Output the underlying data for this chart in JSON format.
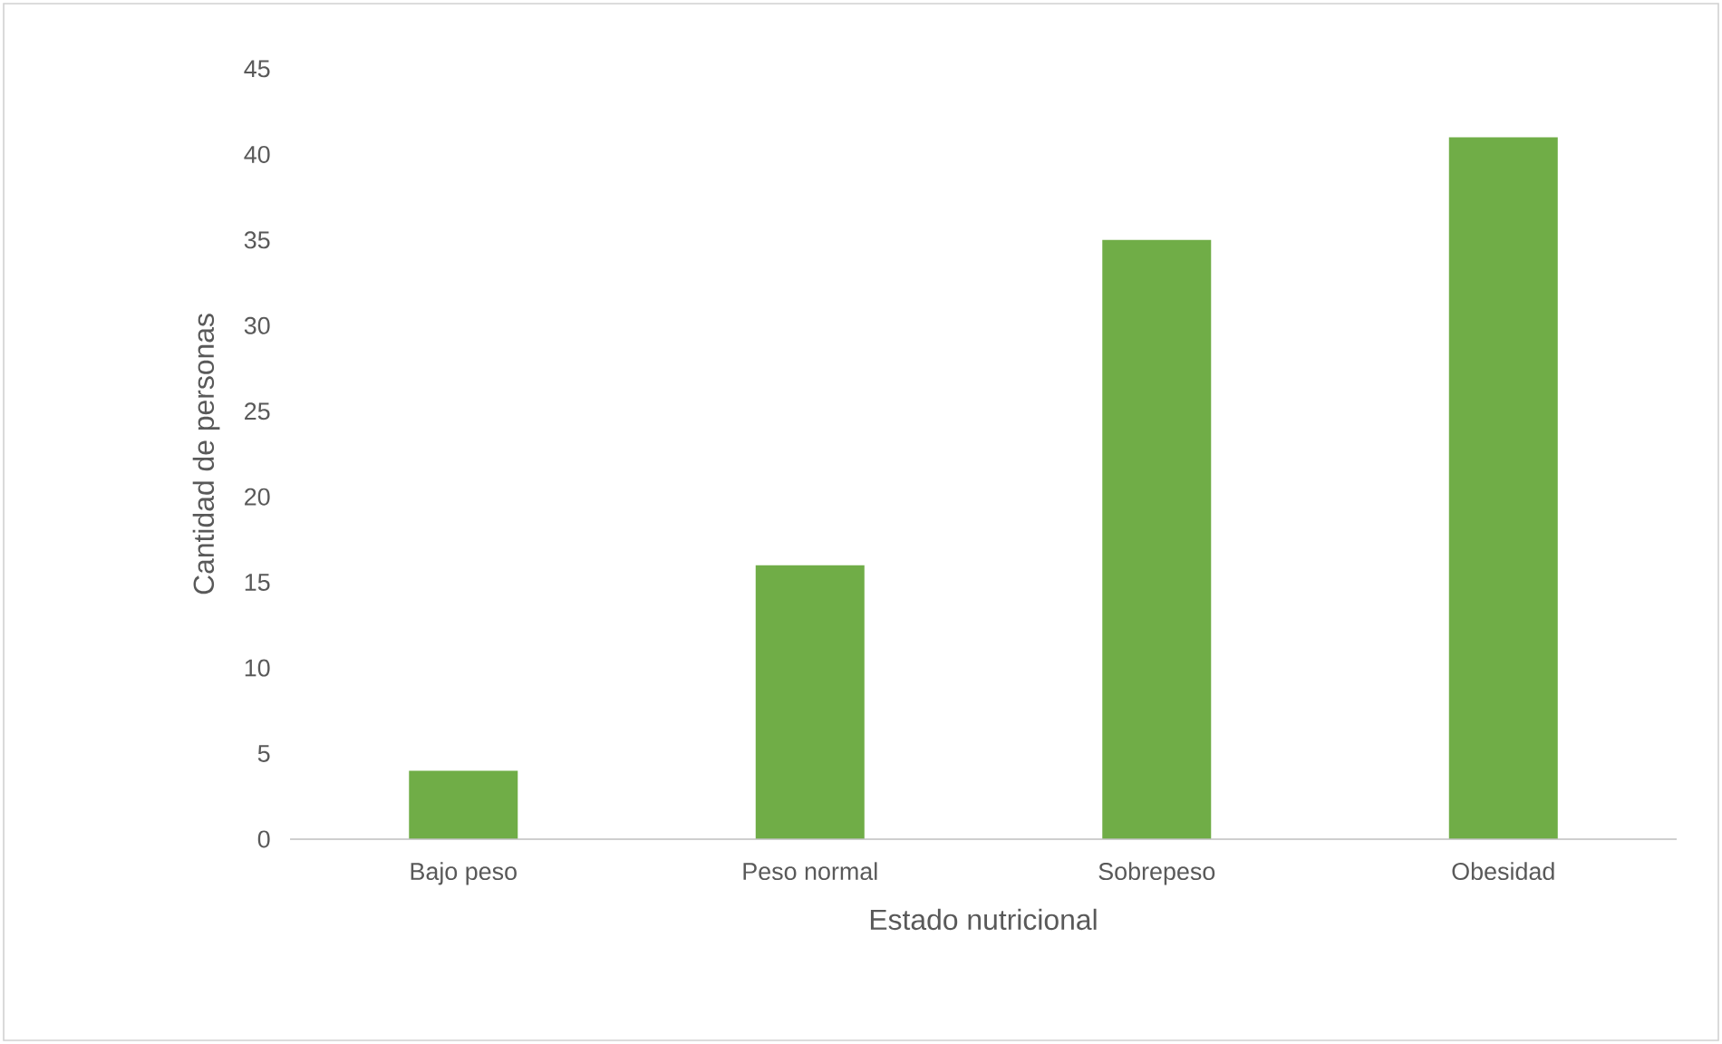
{
  "chart_data": {
    "type": "bar",
    "xlabel": "Estado nutricional",
    "ylabel": "Cantidad de personas",
    "categories": [
      "Bajo peso",
      "Peso normal",
      "Sobrepeso",
      "Obesidad"
    ],
    "values": [
      4,
      16,
      35,
      41
    ],
    "color": "#70ad47",
    "ylim": [
      0,
      45
    ],
    "yticks": [
      0,
      5,
      10,
      15,
      20,
      25,
      30,
      35,
      40,
      45
    ]
  }
}
